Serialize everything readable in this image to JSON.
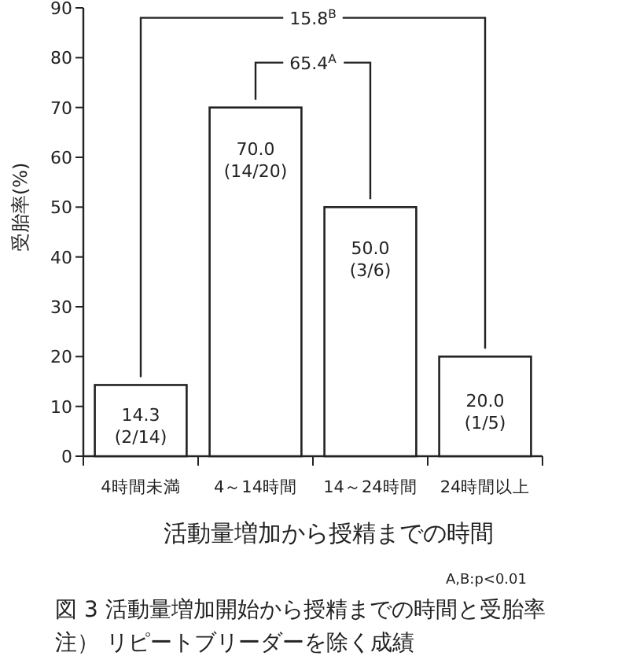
{
  "chart_data": {
    "type": "bar",
    "title": "図 3  活動量増加開始から授精までの時間と受胎率",
    "subtitle": "注） リピートブリーダーを除く成績",
    "xlabel": "活動量増加から授精までの時間",
    "ylabel": "受胎率(%)",
    "categories": [
      "4時間未満",
      "4～14時間",
      "14～24時間",
      "24時間以上"
    ],
    "values": [
      14.3,
      70.0,
      50.0,
      20.0
    ],
    "color": "#ffffff",
    "value_labels": [
      "14.3\n(2/14)",
      "70.0\n(14/20)",
      "50.0\n(3/6)",
      "20.0\n(1/5)"
    ],
    "ylim": [
      0,
      90
    ],
    "yticks": [
      0,
      10,
      20,
      30,
      40,
      50,
      60,
      70,
      80,
      90
    ],
    "annotations": [
      "15.8$^{B}$",
      "65.4$^{A}$",
      "A,B:p<0.01"
    ]
  }
}
